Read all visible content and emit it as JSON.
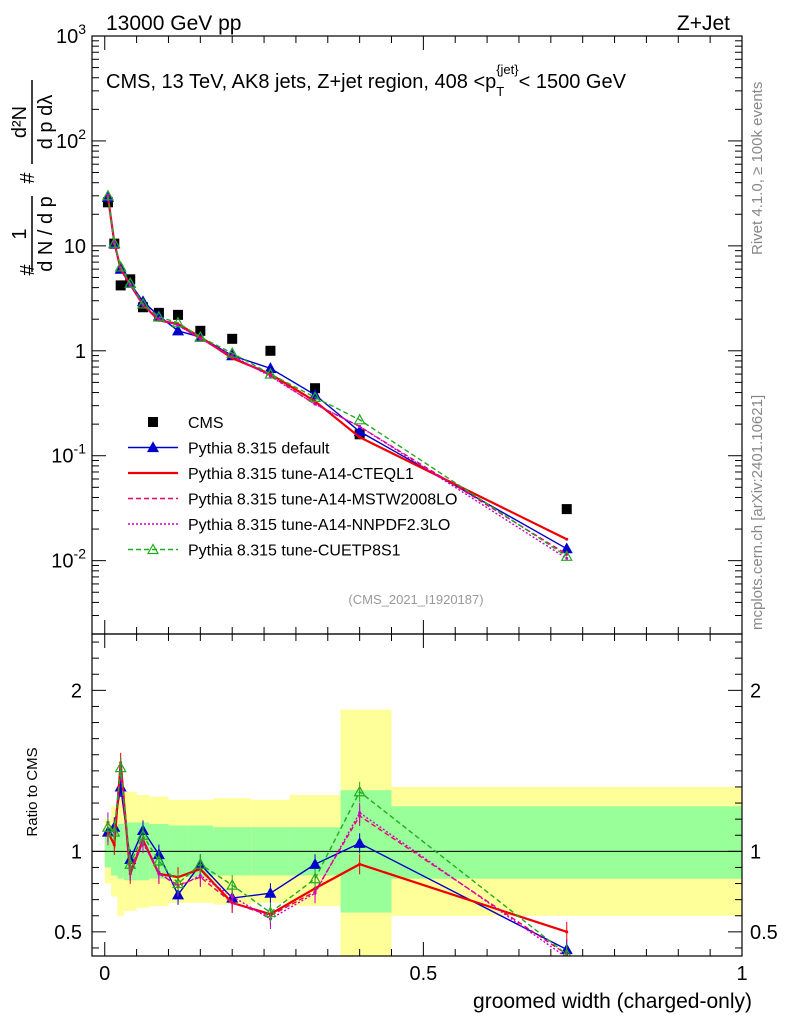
{
  "header": {
    "energy_label": "13000 GeV pp",
    "process_label": "Z+Jet"
  },
  "side_labels": {
    "rivet": "Rivet 4.1.0, ≥ 100k events",
    "mcplots": "mcplots.cern.ch [arXiv:2401.10621]"
  },
  "chart_data": [
    {
      "type": "line",
      "panel": "main",
      "title": "CMS, 13 TeV, AK8 jets, Z+jet region, 408 <p_T^{jet}< 1500 GeV",
      "title_main": "CMS, 13 TeV, AK8 jets, Z+jet region, 408 <p",
      "title_sup": "{jet}",
      "title_sub": "T",
      "title_tail": "< 1500 GeV",
      "watermark": "(CMS_2021_I1920187)",
      "ylabel": "1/dN/dp_T · d²N/dp_T dλ",
      "yscale": "log",
      "ylim": [
        0.002,
        1000
      ],
      "xlim": [
        -0.02,
        1.0
      ],
      "ytick_labels": [
        "10^-2",
        "10^-1",
        "1",
        "10",
        "10^2",
        "10^3"
      ],
      "legend_position": "lower-left",
      "series": [
        {
          "name": "CMS",
          "style": "data",
          "color": "#000000",
          "x": [
            0.005,
            0.015,
            0.025,
            0.04,
            0.06,
            0.085,
            0.115,
            0.15,
            0.2,
            0.26,
            0.33,
            0.4,
            0.725
          ],
          "y": [
            26.0,
            10.5,
            4.2,
            4.8,
            2.6,
            2.3,
            2.2,
            1.55,
            1.3,
            1.0,
            0.44,
            0.16,
            0.031
          ]
        },
        {
          "name": "Pythia 8.315 default",
          "color": "#0000cc",
          "dash": "",
          "marker": "triangle",
          "x": [
            0.005,
            0.015,
            0.025,
            0.04,
            0.06,
            0.085,
            0.115,
            0.15,
            0.2,
            0.26,
            0.33,
            0.4,
            0.725
          ],
          "y": [
            29.0,
            10.5,
            6.0,
            4.4,
            2.95,
            2.15,
            1.55,
            1.35,
            0.9,
            0.68,
            0.38,
            0.17,
            0.013
          ]
        },
        {
          "name": "Pythia 8.315 tune-A14-CTEQL1",
          "color": "#ee0000",
          "dash": "",
          "marker": "",
          "x": [
            0.005,
            0.015,
            0.025,
            0.04,
            0.06,
            0.085,
            0.115,
            0.15,
            0.2,
            0.26,
            0.33,
            0.4,
            0.725
          ],
          "y": [
            29.5,
            10.8,
            6.0,
            4.3,
            2.75,
            1.95,
            1.8,
            1.35,
            0.85,
            0.6,
            0.33,
            0.15,
            0.016
          ]
        },
        {
          "name": "Pythia 8.315 tune-A14-MSTW2008LO",
          "color": "#ee0066",
          "dash": "5,3",
          "marker": "",
          "x": [
            0.005,
            0.015,
            0.025,
            0.04,
            0.06,
            0.085,
            0.115,
            0.15,
            0.2,
            0.26,
            0.33,
            0.4,
            0.725
          ],
          "y": [
            29.0,
            10.5,
            6.1,
            4.2,
            2.75,
            2.0,
            1.75,
            1.3,
            0.88,
            0.58,
            0.31,
            0.19,
            0.0115
          ]
        },
        {
          "name": "Pythia 8.315 tune-A14-NNPDF2.3LO",
          "color": "#cc00cc",
          "dash": "2,2",
          "marker": "",
          "x": [
            0.005,
            0.015,
            0.025,
            0.04,
            0.06,
            0.085,
            0.115,
            0.15,
            0.2,
            0.26,
            0.33,
            0.4,
            0.725
          ],
          "y": [
            30.5,
            10.9,
            6.2,
            4.2,
            2.7,
            2.0,
            1.75,
            1.3,
            0.9,
            0.57,
            0.31,
            0.19,
            0.0105
          ]
        },
        {
          "name": "Pythia 8.315 tune-CUETP8S1",
          "color": "#22aa22",
          "dash": "5,3",
          "marker": "open-triangle",
          "x": [
            0.005,
            0.015,
            0.025,
            0.04,
            0.06,
            0.085,
            0.115,
            0.15,
            0.2,
            0.26,
            0.33,
            0.4,
            0.725
          ],
          "y": [
            30.0,
            10.6,
            6.3,
            4.4,
            2.8,
            2.1,
            1.85,
            1.35,
            0.95,
            0.6,
            0.36,
            0.22,
            0.011
          ]
        }
      ]
    },
    {
      "type": "line",
      "panel": "ratio",
      "ylabel": "Ratio to CMS",
      "xlabel": "groomed width (charged-only)",
      "ylim": [
        0.35,
        2.35
      ],
      "xlim": [
        -0.02,
        1.0
      ],
      "ytick_labels": [
        "0.5",
        "1",
        "2"
      ],
      "xtick_labels": [
        "0",
        "0.5",
        "1"
      ],
      "uncertainty_bands": {
        "bin_edges": [
          0.0,
          0.01,
          0.02,
          0.03,
          0.05,
          0.07,
          0.1,
          0.13,
          0.17,
          0.23,
          0.29,
          0.37,
          0.45,
          1.0
        ],
        "inner_lo": [
          0.9,
          0.85,
          0.83,
          0.82,
          0.82,
          0.83,
          0.84,
          0.84,
          0.85,
          0.85,
          0.85,
          0.62,
          0.83
        ],
        "inner_hi": [
          1.1,
          1.15,
          1.17,
          1.18,
          1.18,
          1.17,
          1.16,
          1.16,
          1.15,
          1.15,
          1.15,
          1.38,
          1.28
        ],
        "outer_lo": [
          0.8,
          0.72,
          0.6,
          0.63,
          0.65,
          0.66,
          0.68,
          0.68,
          0.67,
          0.68,
          0.66,
          0.35,
          0.6
        ],
        "outer_hi": [
          1.2,
          1.28,
          1.4,
          1.37,
          1.35,
          1.34,
          1.32,
          1.32,
          1.33,
          1.32,
          1.35,
          1.88,
          1.4
        ]
      },
      "series": [
        {
          "name": "Pythia 8.315 default",
          "color": "#0000cc",
          "dash": "",
          "marker": "triangle",
          "x": [
            0.005,
            0.015,
            0.025,
            0.04,
            0.06,
            0.085,
            0.115,
            0.15,
            0.2,
            0.26,
            0.33,
            0.4,
            0.725
          ],
          "y": [
            1.12,
            1.15,
            1.4,
            0.95,
            1.13,
            0.98,
            0.73,
            0.92,
            0.71,
            0.74,
            0.92,
            1.05,
            0.39
          ]
        },
        {
          "name": "Pythia 8.315 tune-A14-CTEQL1",
          "color": "#ee0000",
          "dash": "",
          "marker": "",
          "x": [
            0.005,
            0.015,
            0.025,
            0.04,
            0.06,
            0.085,
            0.115,
            0.15,
            0.2,
            0.26,
            0.33,
            0.4,
            0.725
          ],
          "y": [
            1.12,
            1.04,
            1.55,
            0.86,
            1.07,
            0.86,
            0.84,
            0.89,
            0.68,
            0.61,
            0.77,
            0.92,
            0.5
          ]
        },
        {
          "name": "Pythia 8.315 tune-A14-MSTW2008LO",
          "color": "#ee0066",
          "dash": "5,3",
          "marker": "",
          "x": [
            0.005,
            0.015,
            0.025,
            0.04,
            0.06,
            0.085,
            0.115,
            0.15,
            0.2,
            0.26,
            0.33,
            0.4,
            0.725
          ],
          "y": [
            1.1,
            1.13,
            1.52,
            0.88,
            1.08,
            0.86,
            0.79,
            0.84,
            0.68,
            0.6,
            0.75,
            1.22,
            0.36
          ]
        },
        {
          "name": "Pythia 8.315 tune-A14-NNPDF2.3LO",
          "color": "#cc00cc",
          "dash": "2,2",
          "marker": "",
          "x": [
            0.005,
            0.015,
            0.025,
            0.04,
            0.06,
            0.085,
            0.115,
            0.15,
            0.2,
            0.26,
            0.33,
            0.4,
            0.725
          ],
          "y": [
            1.18,
            1.12,
            1.5,
            0.88,
            1.05,
            0.87,
            0.78,
            0.85,
            0.72,
            0.58,
            0.74,
            1.24,
            0.34
          ]
        },
        {
          "name": "Pythia 8.315 tune-CUETP8S1",
          "color": "#22aa22",
          "dash": "5,3",
          "marker": "open-triangle",
          "x": [
            0.005,
            0.015,
            0.025,
            0.04,
            0.06,
            0.085,
            0.115,
            0.15,
            0.2,
            0.26,
            0.33,
            0.4,
            0.725
          ],
          "y": [
            1.15,
            1.12,
            1.52,
            0.92,
            1.1,
            0.94,
            0.8,
            0.92,
            0.79,
            0.62,
            0.83,
            1.37,
            0.36
          ]
        }
      ]
    }
  ]
}
